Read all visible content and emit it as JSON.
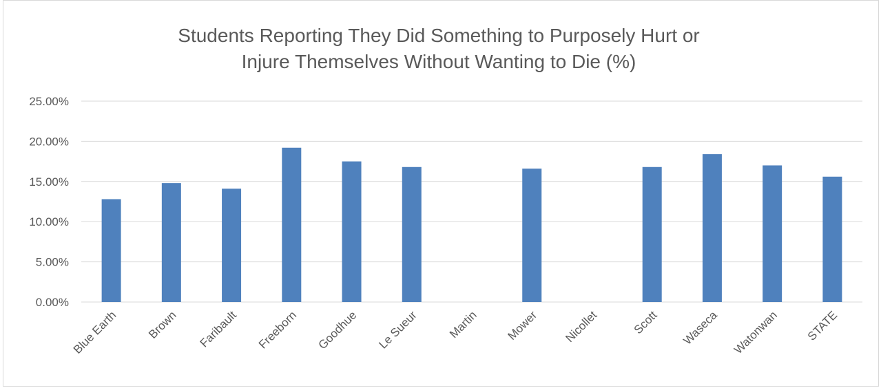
{
  "chart_data": {
    "type": "bar",
    "title_lines": [
      "Students Reporting They Did Something to Purposely Hurt or",
      "Injure Themselves Without Wanting to Die (%)"
    ],
    "categories": [
      "Blue Earth",
      "Brown",
      "Faribault",
      "Freeborn",
      "Goodhue",
      "Le Sueur",
      "Martin",
      "Mower",
      "Nicollet",
      "Scott",
      "Waseca",
      "Watonwan",
      "STATE"
    ],
    "values": [
      12.8,
      14.8,
      14.1,
      19.2,
      17.5,
      16.8,
      null,
      16.6,
      null,
      16.8,
      18.4,
      17.0,
      15.6
    ],
    "ylim": [
      0,
      25
    ],
    "ytick_values": [
      0,
      5,
      10,
      15,
      20,
      25
    ],
    "ytick_labels": [
      "0.00%",
      "5.00%",
      "10.00%",
      "15.00%",
      "20.00%",
      "25.00%"
    ],
    "grid": true,
    "legend": "none",
    "bar_color": "#4f81bd",
    "grid_color": "#d9d9d9"
  }
}
